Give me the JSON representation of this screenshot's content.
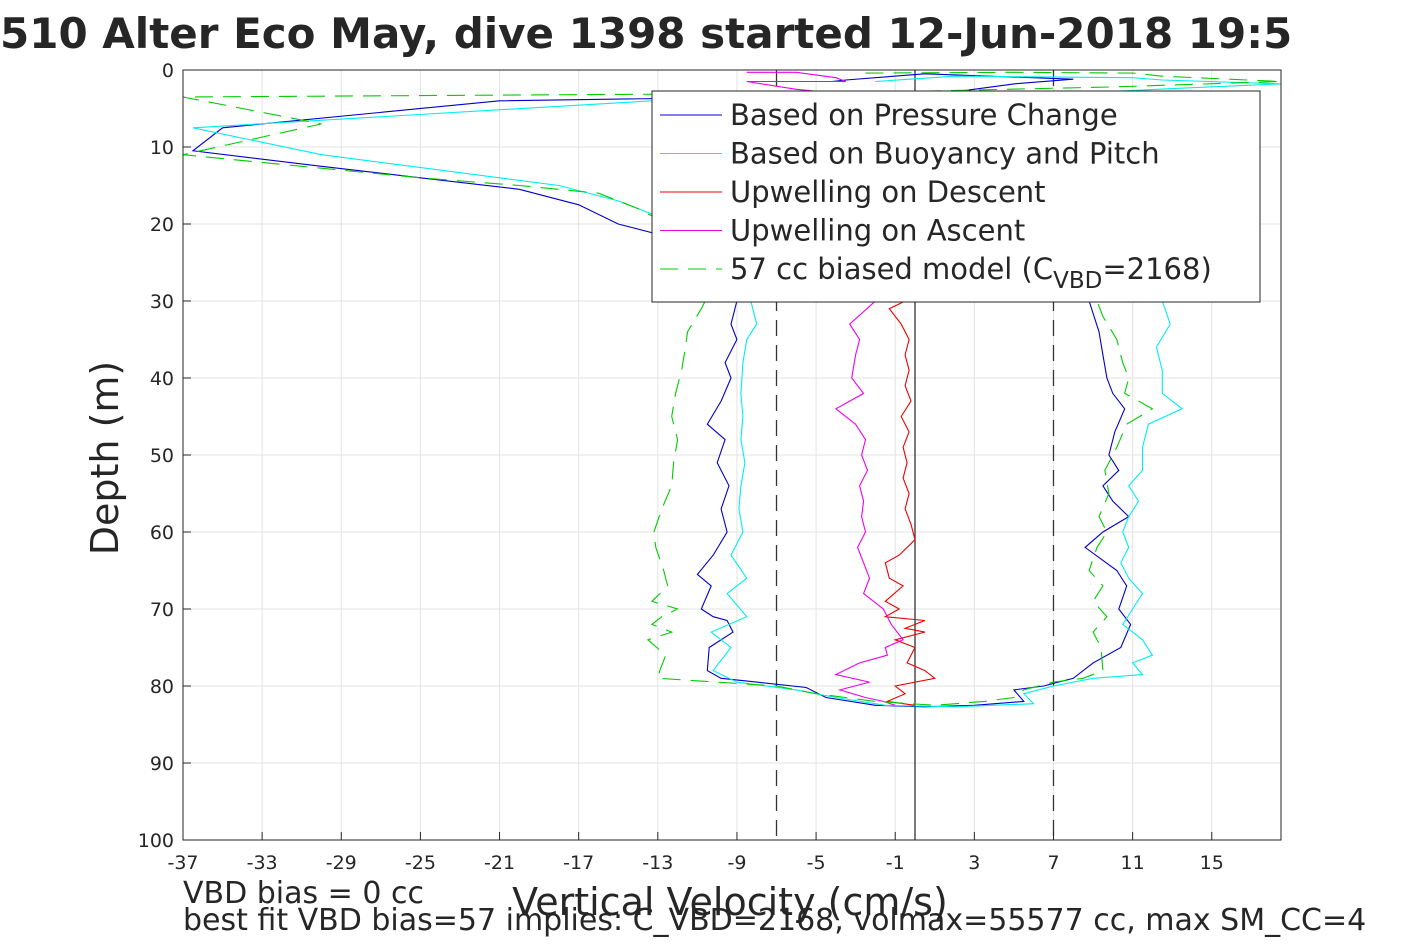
{
  "chart_data": {
    "type": "line",
    "title": "510 Alter Eco May, dive 1398 started 12-Jun-2018 19:5",
    "xlabel": "Vertical Velocity (cm/s)",
    "ylabel": "Depth (m)",
    "xlim": [
      -37,
      18.5
    ],
    "ylim": [
      0,
      100
    ],
    "y_reversed": true,
    "grid": true,
    "x_ticks": [
      -37,
      -33,
      -29,
      -25,
      -21,
      -17,
      -13,
      -9,
      -5,
      -1,
      3,
      7,
      11,
      15
    ],
    "x_tick_labels": [
      "-37",
      "-33",
      "-29",
      "-25",
      "-21",
      "-17",
      "-13",
      "-9",
      "-5",
      "-1",
      "3",
      "7",
      "11",
      "15"
    ],
    "y_ticks": [
      0,
      10,
      20,
      30,
      40,
      50,
      60,
      70,
      80,
      90,
      100
    ],
    "y_tick_labels": [
      "0",
      "10",
      "20",
      "30",
      "40",
      "50",
      "60",
      "70",
      "80",
      "90",
      "100"
    ],
    "legend_placement": "top-right",
    "vertical_lines": [
      {
        "x": -7,
        "style": "dashed",
        "color": "#000000"
      },
      {
        "x": 0,
        "style": "solid",
        "color": "#000000"
      },
      {
        "x": 7,
        "style": "dashed",
        "color": "#000000"
      }
    ],
    "series": [
      {
        "name": "Based on Pressure Change",
        "color": "#0000cc",
        "dash": "",
        "points": [
          [
            -4.2,
            1.5
          ],
          [
            -3.5,
            1.3
          ],
          [
            0.5,
            0.5
          ],
          [
            8,
            1.2
          ],
          [
            5,
            1.8
          ],
          [
            1,
            3.2
          ],
          [
            -21,
            4
          ],
          [
            -35,
            7.5
          ],
          [
            -36.5,
            10.5
          ],
          [
            -30,
            12.5
          ],
          [
            -25,
            14
          ],
          [
            -20,
            15.5
          ],
          [
            -17,
            17.5
          ],
          [
            -15,
            20
          ],
          [
            -12,
            22
          ],
          [
            -11,
            25
          ],
          [
            -9.5,
            28
          ],
          [
            -9,
            30
          ],
          [
            -9.3,
            33
          ],
          [
            -9,
            35
          ],
          [
            -9.6,
            38
          ],
          [
            -9.3,
            40
          ],
          [
            -9.8,
            43
          ],
          [
            -10.5,
            46
          ],
          [
            -9.6,
            48
          ],
          [
            -10,
            51
          ],
          [
            -9.4,
            54
          ],
          [
            -9.8,
            57
          ],
          [
            -9.5,
            60
          ],
          [
            -10.2,
            63
          ],
          [
            -11,
            65.5
          ],
          [
            -10.3,
            67
          ],
          [
            -10.8,
            70
          ],
          [
            -10.2,
            71
          ],
          [
            -9.5,
            71.5
          ],
          [
            -9.2,
            73
          ],
          [
            -10.4,
            75
          ],
          [
            -10.5,
            78
          ],
          [
            -9.8,
            79
          ],
          [
            -8,
            79.5
          ],
          [
            -5.5,
            80.2
          ],
          [
            -4.5,
            81.5
          ],
          [
            -2,
            82.5
          ],
          [
            0.5,
            82.7
          ],
          [
            3,
            82.5
          ],
          [
            5.5,
            82
          ],
          [
            5,
            80.5
          ],
          [
            6.5,
            80
          ],
          [
            8,
            79
          ],
          [
            9,
            77
          ],
          [
            10.4,
            75
          ],
          [
            10.9,
            72
          ],
          [
            10.3,
            70
          ],
          [
            10.7,
            67
          ],
          [
            10.2,
            65
          ],
          [
            8.6,
            62
          ],
          [
            9.5,
            60
          ],
          [
            10.8,
            58
          ],
          [
            10,
            56
          ],
          [
            9.5,
            54
          ],
          [
            10.3,
            52
          ],
          [
            9.8,
            50
          ],
          [
            10.1,
            47
          ],
          [
            10.6,
            44
          ],
          [
            10,
            42
          ],
          [
            9.7,
            40
          ],
          [
            9.5,
            37
          ],
          [
            9.3,
            34
          ],
          [
            8.8,
            30
          ]
        ]
      },
      {
        "name": "Based on Buoyancy and Pitch",
        "color": "#00eeee",
        "dash": "",
        "points": [
          [
            -2,
            1.5
          ],
          [
            2,
            0.8
          ],
          [
            11,
            1
          ],
          [
            12.5,
            1.3
          ],
          [
            18.5,
            1.8
          ],
          [
            14,
            2.3
          ],
          [
            8,
            3
          ],
          [
            -2,
            3.3
          ],
          [
            -10,
            3.5
          ],
          [
            -36.5,
            7.5
          ],
          [
            -30,
            11
          ],
          [
            -24,
            13
          ],
          [
            -18,
            15
          ],
          [
            -15,
            17
          ],
          [
            -13,
            19
          ],
          [
            -10.5,
            22
          ],
          [
            -9.5,
            25
          ],
          [
            -8.8,
            28
          ],
          [
            -8.3,
            30
          ],
          [
            -8,
            33
          ],
          [
            -8.5,
            35
          ],
          [
            -8.7,
            38
          ],
          [
            -8.8,
            42
          ],
          [
            -8.7,
            45
          ],
          [
            -8.8,
            48
          ],
          [
            -8.6,
            51
          ],
          [
            -8.8,
            54
          ],
          [
            -8.9,
            57
          ],
          [
            -8.7,
            60
          ],
          [
            -9.3,
            63
          ],
          [
            -8.5,
            66
          ],
          [
            -9.5,
            68
          ],
          [
            -8.5,
            71
          ],
          [
            -10.3,
            73
          ],
          [
            -9.3,
            75
          ],
          [
            -10.2,
            78
          ],
          [
            -9,
            79.5
          ],
          [
            -6,
            80.5
          ],
          [
            -4,
            81.5
          ],
          [
            -1.5,
            82.5
          ],
          [
            2,
            82.7
          ],
          [
            6,
            82.3
          ],
          [
            5.5,
            81
          ],
          [
            7,
            80
          ],
          [
            9,
            79
          ],
          [
            11.5,
            78.5
          ],
          [
            11,
            77
          ],
          [
            12,
            76
          ],
          [
            11.5,
            74
          ],
          [
            10.5,
            72
          ],
          [
            11,
            70
          ],
          [
            11.5,
            68
          ],
          [
            10.8,
            66
          ],
          [
            10.4,
            64
          ],
          [
            10.8,
            62
          ],
          [
            10.5,
            60
          ],
          [
            10.8,
            58
          ],
          [
            11.3,
            56
          ],
          [
            10.8,
            54
          ],
          [
            11.5,
            52
          ],
          [
            11.5,
            49
          ],
          [
            11.8,
            46
          ],
          [
            13.5,
            44
          ],
          [
            12.5,
            42
          ],
          [
            12.5,
            39
          ],
          [
            12.2,
            36
          ],
          [
            12.9,
            33
          ],
          [
            12.5,
            30
          ]
        ]
      },
      {
        "name": "Upwelling on Descent",
        "color": "#ee0000",
        "dash": "",
        "points": [
          [
            -0.5,
            30
          ],
          [
            -1.3,
            31
          ],
          [
            -0.7,
            33
          ],
          [
            -0.3,
            35
          ],
          [
            -0.5,
            37
          ],
          [
            -0.3,
            39
          ],
          [
            -0.5,
            41
          ],
          [
            -0.2,
            43
          ],
          [
            -0.7,
            45
          ],
          [
            -0.3,
            47
          ],
          [
            -0.6,
            49
          ],
          [
            -0.4,
            51
          ],
          [
            -0.6,
            53
          ],
          [
            -0.3,
            55
          ],
          [
            -0.5,
            57
          ],
          [
            -0.2,
            59
          ],
          [
            0,
            61
          ],
          [
            -0.8,
            63
          ],
          [
            -1.5,
            64
          ],
          [
            -1.3,
            66
          ],
          [
            -0.6,
            67
          ],
          [
            -1.5,
            69
          ],
          [
            -0.8,
            70
          ],
          [
            -1.5,
            71
          ],
          [
            0.5,
            71.5
          ],
          [
            -0.5,
            72.5
          ],
          [
            0.5,
            73
          ],
          [
            -1,
            74
          ],
          [
            0,
            75
          ],
          [
            -0.4,
            77
          ],
          [
            0.5,
            78
          ],
          [
            1,
            79
          ],
          [
            -1,
            80
          ],
          [
            -0.5,
            81
          ],
          [
            -1.4,
            82
          ],
          [
            0,
            82.5
          ]
        ]
      },
      {
        "name": "Upwelling on Ascent",
        "color": "#ee00ee",
        "dash": "",
        "points": [
          [
            -8.5,
            0.3
          ],
          [
            -6,
            0.3
          ],
          [
            -4,
            1
          ],
          [
            -3.5,
            1.5
          ],
          [
            -8.5,
            1.5
          ],
          [
            -6,
            2.5
          ],
          [
            -4,
            3
          ],
          [
            -2,
            30
          ],
          [
            -3.3,
            33
          ],
          [
            -2.8,
            35
          ],
          [
            -3,
            37
          ],
          [
            -3.2,
            40
          ],
          [
            -2.6,
            42
          ],
          [
            -4,
            44
          ],
          [
            -3,
            46
          ],
          [
            -2.5,
            48
          ],
          [
            -2.7,
            50
          ],
          [
            -2.4,
            52
          ],
          [
            -2.8,
            54
          ],
          [
            -2.6,
            56
          ],
          [
            -2.7,
            58
          ],
          [
            -2.5,
            60
          ],
          [
            -2.9,
            62
          ],
          [
            -2.6,
            64
          ],
          [
            -2.3,
            66
          ],
          [
            -2.6,
            68
          ],
          [
            -1.6,
            70
          ],
          [
            -1.2,
            72
          ],
          [
            -0.6,
            74
          ],
          [
            -1.5,
            75
          ],
          [
            -1.4,
            76
          ],
          [
            -2.8,
            77
          ],
          [
            -4,
            78.5
          ],
          [
            -2.3,
            79.5
          ],
          [
            -3.8,
            80.5
          ],
          [
            -2.5,
            81.5
          ],
          [
            -1.6,
            82
          ],
          [
            -1,
            82.5
          ]
        ]
      },
      {
        "name": "57 cc biased model (C_VBD=2168)",
        "legend_parts": [
          "57 cc biased model (C",
          "VBD",
          "=2168)"
        ],
        "color": "#00cc00",
        "dash": "18,10",
        "points": [
          [
            -2.5,
            0.4
          ],
          [
            5,
            0.3
          ],
          [
            11,
            0.4
          ],
          [
            12.5,
            0.8
          ],
          [
            18.5,
            1.5
          ],
          [
            10,
            2.2
          ],
          [
            -4,
            3
          ],
          [
            -37,
            3.5
          ],
          [
            -34,
            5
          ],
          [
            -30,
            7
          ],
          [
            -37,
            11
          ],
          [
            -31,
            12.5
          ],
          [
            -25,
            14
          ],
          [
            -20,
            15
          ],
          [
            -16,
            16
          ],
          [
            -14,
            18
          ],
          [
            -12.5,
            20
          ],
          [
            -11.5,
            23
          ],
          [
            -11,
            26
          ],
          [
            -10.4,
            29
          ],
          [
            -10.8,
            31
          ],
          [
            -11.5,
            34
          ],
          [
            -11.6,
            36
          ],
          [
            -11.8,
            39
          ],
          [
            -12.1,
            42
          ],
          [
            -12.3,
            45
          ],
          [
            -12,
            48
          ],
          [
            -12.2,
            51
          ],
          [
            -12.3,
            54
          ],
          [
            -12.8,
            57
          ],
          [
            -13.2,
            60
          ],
          [
            -13.1,
            62
          ],
          [
            -12.7,
            65
          ],
          [
            -12.5,
            67
          ],
          [
            -13.3,
            69
          ],
          [
            -12,
            70
          ],
          [
            -12.8,
            71
          ],
          [
            -13.3,
            72
          ],
          [
            -12.3,
            73
          ],
          [
            -13.5,
            74
          ],
          [
            -12.6,
            76
          ],
          [
            -12.9,
            78
          ],
          [
            -13,
            79
          ],
          [
            -10,
            79.5
          ],
          [
            -7,
            80
          ],
          [
            -5,
            81
          ],
          [
            -2,
            82
          ],
          [
            1,
            82.5
          ],
          [
            3.5,
            82
          ],
          [
            5,
            81.5
          ],
          [
            5.5,
            80.5
          ],
          [
            7,
            79.5
          ],
          [
            8.5,
            79
          ],
          [
            9.5,
            78
          ],
          [
            9.4,
            75
          ],
          [
            9,
            73
          ],
          [
            9.7,
            71
          ],
          [
            9,
            69
          ],
          [
            9.5,
            67
          ],
          [
            8.8,
            65
          ],
          [
            9.2,
            62
          ],
          [
            9.7,
            60
          ],
          [
            9.3,
            58
          ],
          [
            9.8,
            55
          ],
          [
            9.6,
            52
          ],
          [
            10.2,
            49
          ],
          [
            10.7,
            46
          ],
          [
            12,
            44
          ],
          [
            10.6,
            42
          ],
          [
            10.8,
            40
          ],
          [
            10.5,
            38
          ],
          [
            10.2,
            35
          ],
          [
            9.5,
            32
          ],
          [
            9.2,
            30
          ]
        ]
      }
    ],
    "annotations": [
      "VBD bias = 0 cc",
      "best fit VBD bias=57 implies: C_VBD=2168, volmax=55577 cc, max SM_CC=4"
    ]
  }
}
